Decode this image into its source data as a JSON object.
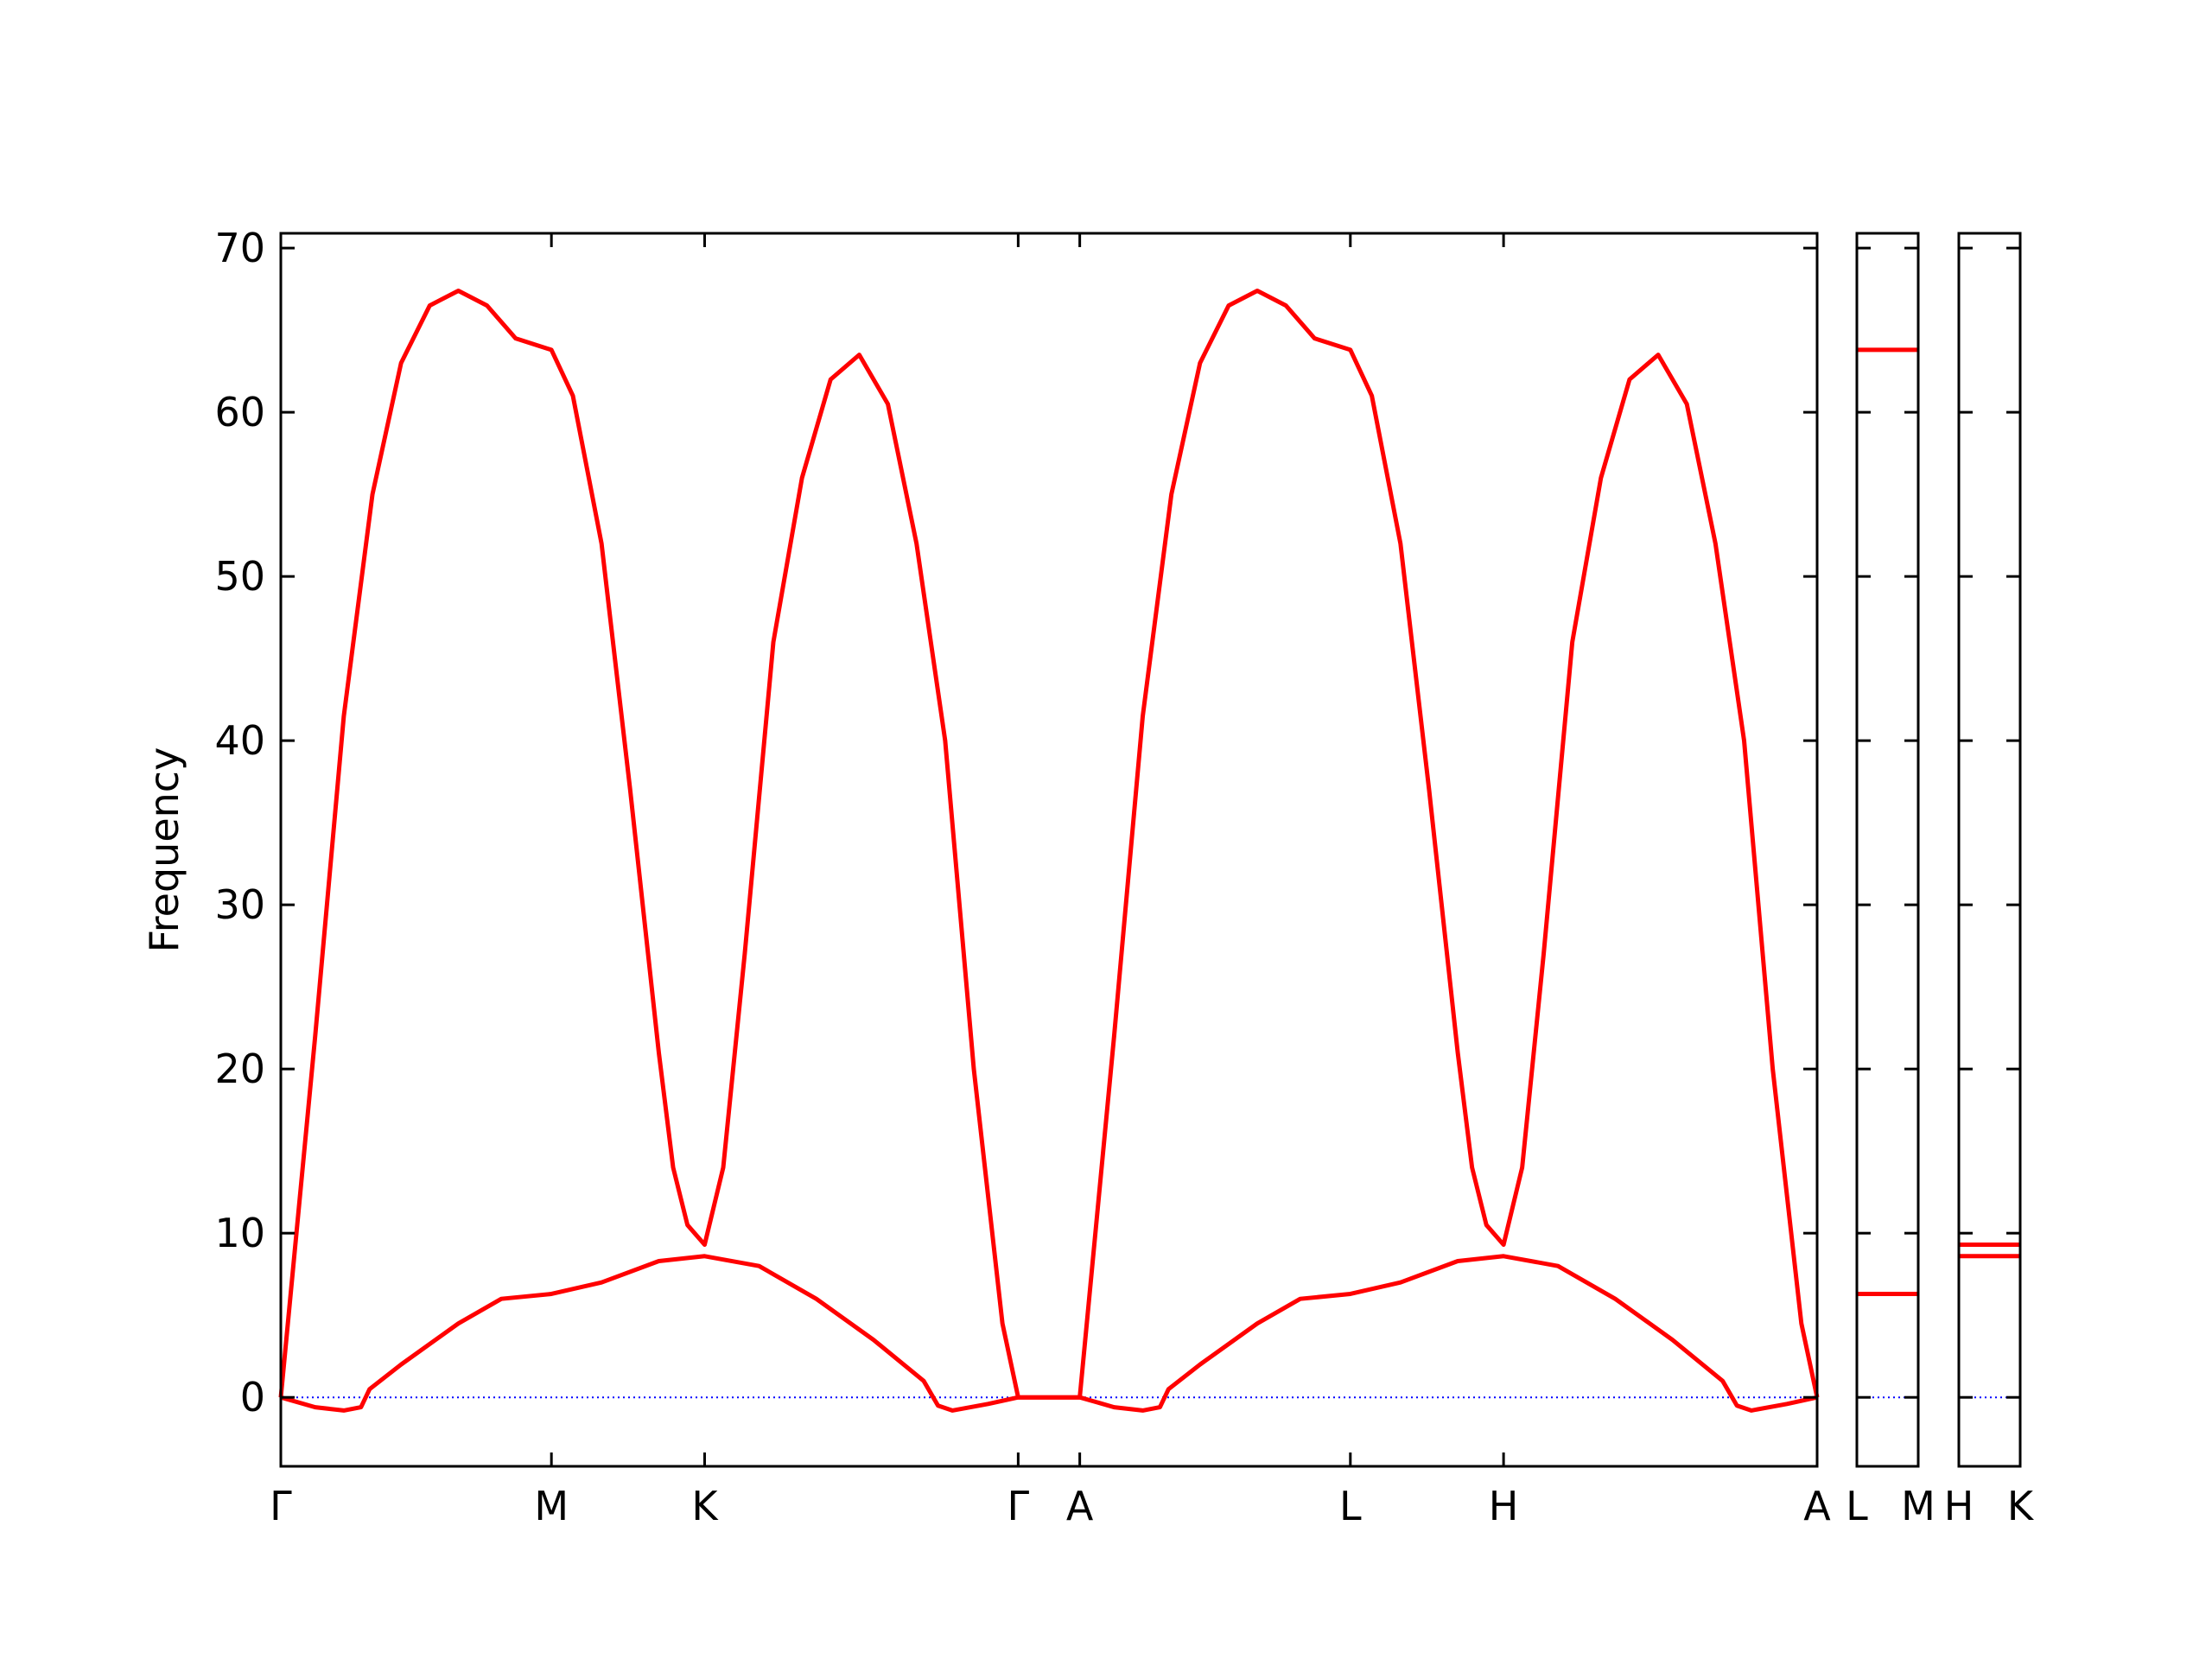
{
  "chart_data": [
    {
      "type": "line",
      "ylabel": "Frequency",
      "xlim": [
        0,
        1073
      ],
      "ylim": [
        -4.2,
        70.9
      ],
      "xticks": [
        {
          "value": 0,
          "label": "Γ"
        },
        {
          "value": 189,
          "label": "M"
        },
        {
          "value": 296,
          "label": "K"
        },
        {
          "value": 515,
          "label": "Γ"
        },
        {
          "value": 558,
          "label": "A"
        },
        {
          "value": 747,
          "label": "L"
        },
        {
          "value": 854,
          "label": "H"
        },
        {
          "value": 1073,
          "label": "A"
        }
      ],
      "yticks": [
        0,
        10,
        20,
        30,
        40,
        50,
        60,
        70
      ],
      "hlines": [
        {
          "value": 0,
          "color": "#0000ff"
        }
      ],
      "series": [
        {
          "color": "#ff0000",
          "x": [
            0,
            24,
            44,
            64,
            84,
            104,
            124,
            144,
            164,
            189,
            204,
            224,
            244,
            264,
            274,
            284,
            296,
            309,
            324,
            344,
            364,
            384,
            404,
            424,
            444,
            464,
            484,
            504,
            515,
            558,
            582,
            602,
            622,
            642,
            662,
            682,
            702,
            722,
            747,
            762,
            782,
            802,
            822,
            832,
            842,
            854,
            867,
            882,
            902,
            922,
            942,
            962,
            982,
            1002,
            1022,
            1042,
            1062,
            1073
          ],
          "values": [
            0,
            22,
            41.5,
            55,
            63,
            66.5,
            67.4,
            66.5,
            64.5,
            63.8,
            61,
            52,
            37,
            21,
            14,
            10.5,
            9.3,
            14,
            27,
            46,
            56,
            62,
            63.5,
            60.5,
            52,
            40,
            20,
            4.5,
            0,
            0,
            22,
            41.5,
            55,
            63,
            66.5,
            67.4,
            66.5,
            64.5,
            63.8,
            61,
            52,
            37,
            21,
            14,
            10.5,
            9.3,
            14,
            27,
            46,
            56,
            62,
            63.5,
            60.5,
            52,
            40,
            20,
            4.5,
            0
          ]
        },
        {
          "color": "#ff0000",
          "x": [
            0,
            24,
            44,
            56,
            62,
            84,
            124,
            154,
            189,
            224,
            264,
            296,
            334,
            374,
            414,
            449,
            459,
            469,
            494,
            515,
            558,
            582,
            602,
            614,
            620,
            642,
            682,
            712,
            747,
            782,
            822,
            854,
            892,
            932,
            972,
            1007,
            1017,
            1027,
            1052,
            1073
          ],
          "values": [
            0,
            -0.6,
            -0.8,
            -0.6,
            0.5,
            2,
            4.5,
            6,
            6.3,
            7,
            8.3,
            8.6,
            8,
            6,
            3.5,
            1,
            -0.5,
            -0.8,
            -0.4,
            0,
            0,
            -0.6,
            -0.8,
            -0.6,
            0.5,
            2,
            4.5,
            6,
            6.3,
            7,
            8.3,
            8.6,
            8,
            6,
            3.5,
            1,
            -0.5,
            -0.8,
            -0.4,
            0
          ]
        }
      ]
    },
    {
      "type": "line",
      "xlim": [
        0,
        43
      ],
      "ylim": [
        -4.2,
        70.9
      ],
      "xticks": [
        {
          "value": 0,
          "label": "L"
        },
        {
          "value": 43,
          "label": "M"
        }
      ],
      "yticks": [
        0,
        10,
        20,
        30,
        40,
        50,
        60,
        70
      ],
      "hlines": [
        {
          "value": 0,
          "color": "#0000ff"
        }
      ],
      "series": [
        {
          "color": "#ff0000",
          "x": [
            0,
            43
          ],
          "values": [
            63.8,
            63.8
          ]
        },
        {
          "color": "#ff0000",
          "x": [
            0,
            43
          ],
          "values": [
            6.3,
            6.3
          ]
        }
      ]
    },
    {
      "type": "line",
      "xlim": [
        0,
        43
      ],
      "ylim": [
        -4.2,
        70.9
      ],
      "xticks": [
        {
          "value": 0,
          "label": "H"
        },
        {
          "value": 43,
          "label": "K"
        }
      ],
      "yticks": [
        0,
        10,
        20,
        30,
        40,
        50,
        60,
        70
      ],
      "hlines": [
        {
          "value": 0,
          "color": "#0000ff"
        }
      ],
      "series": [
        {
          "color": "#ff0000",
          "x": [
            0,
            43
          ],
          "values": [
            9.3,
            9.3
          ]
        },
        {
          "color": "#ff0000",
          "x": [
            0,
            43
          ],
          "values": [
            8.6,
            8.6
          ]
        }
      ]
    }
  ]
}
